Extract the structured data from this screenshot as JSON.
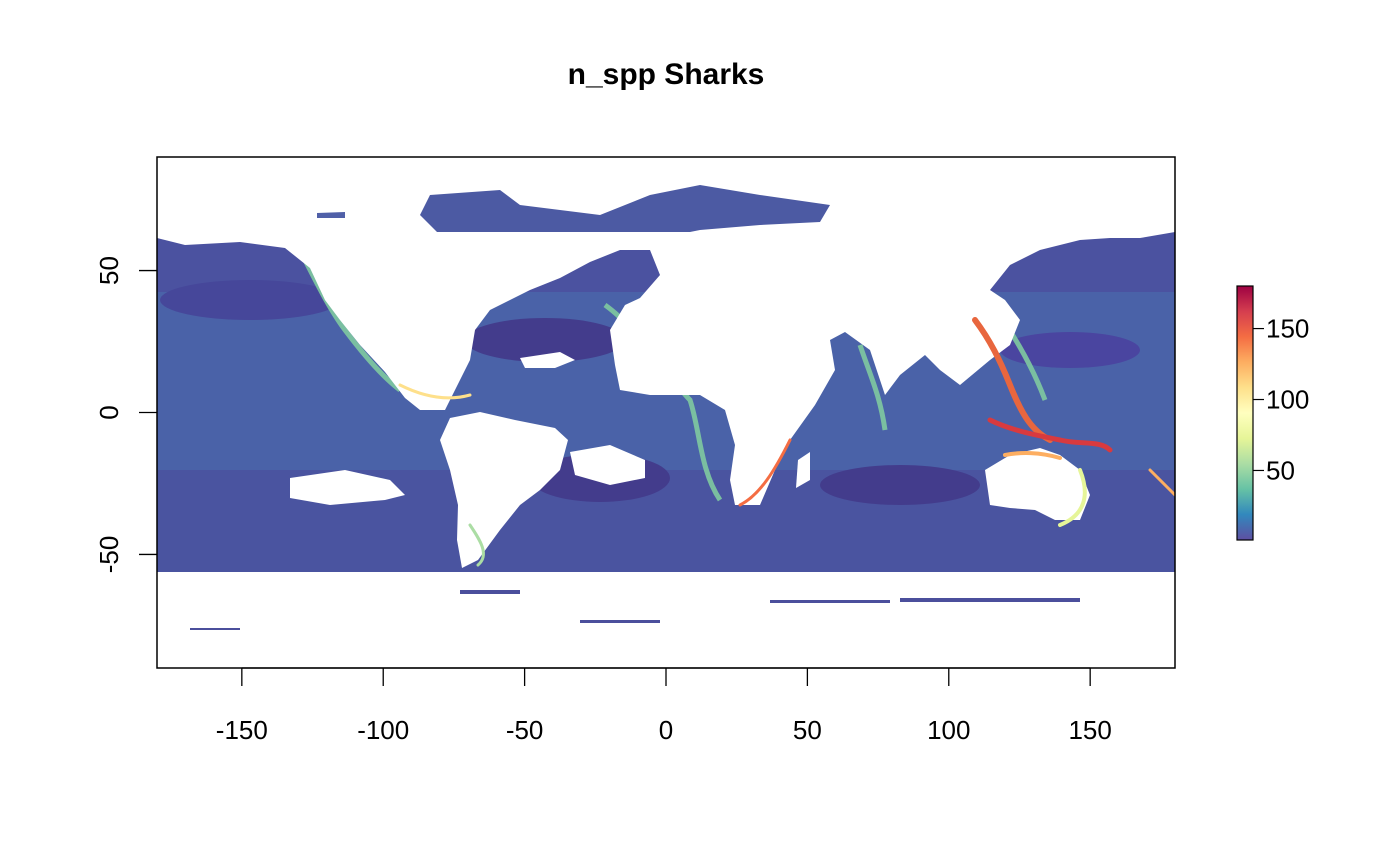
{
  "title": "n_spp Sharks",
  "map": {
    "variable": "n_spp",
    "subject": "Sharks",
    "x_range": [
      -180,
      180
    ],
    "y_range": [
      -90,
      90
    ],
    "x_ticks": [
      -150,
      -100,
      -50,
      0,
      50,
      100,
      150
    ],
    "y_ticks": [
      50,
      0,
      -50
    ],
    "x_tick_labels": [
      "-150",
      "-100",
      "-50",
      "0",
      "50",
      "100",
      "150"
    ],
    "y_tick_labels": [
      "50",
      "0",
      "-50"
    ]
  },
  "legend": {
    "range": [
      1,
      180
    ],
    "ticks": [
      50,
      100,
      150
    ],
    "tick_labels": [
      "50",
      "100",
      "150"
    ],
    "colors": [
      "#5E4FA2",
      "#3288BD",
      "#66C2A5",
      "#ABDDA4",
      "#E6F598",
      "#FFFFBF",
      "#FEE08B",
      "#FDAE61",
      "#F46D43",
      "#D53E4F",
      "#9E0142"
    ]
  },
  "colors": {
    "open_ocean": "#4a5fa6",
    "deep_ocean": "#463f8f",
    "shelf": "#6fc3a4",
    "hotspot": "#d8423e",
    "land": "#ffffff"
  }
}
